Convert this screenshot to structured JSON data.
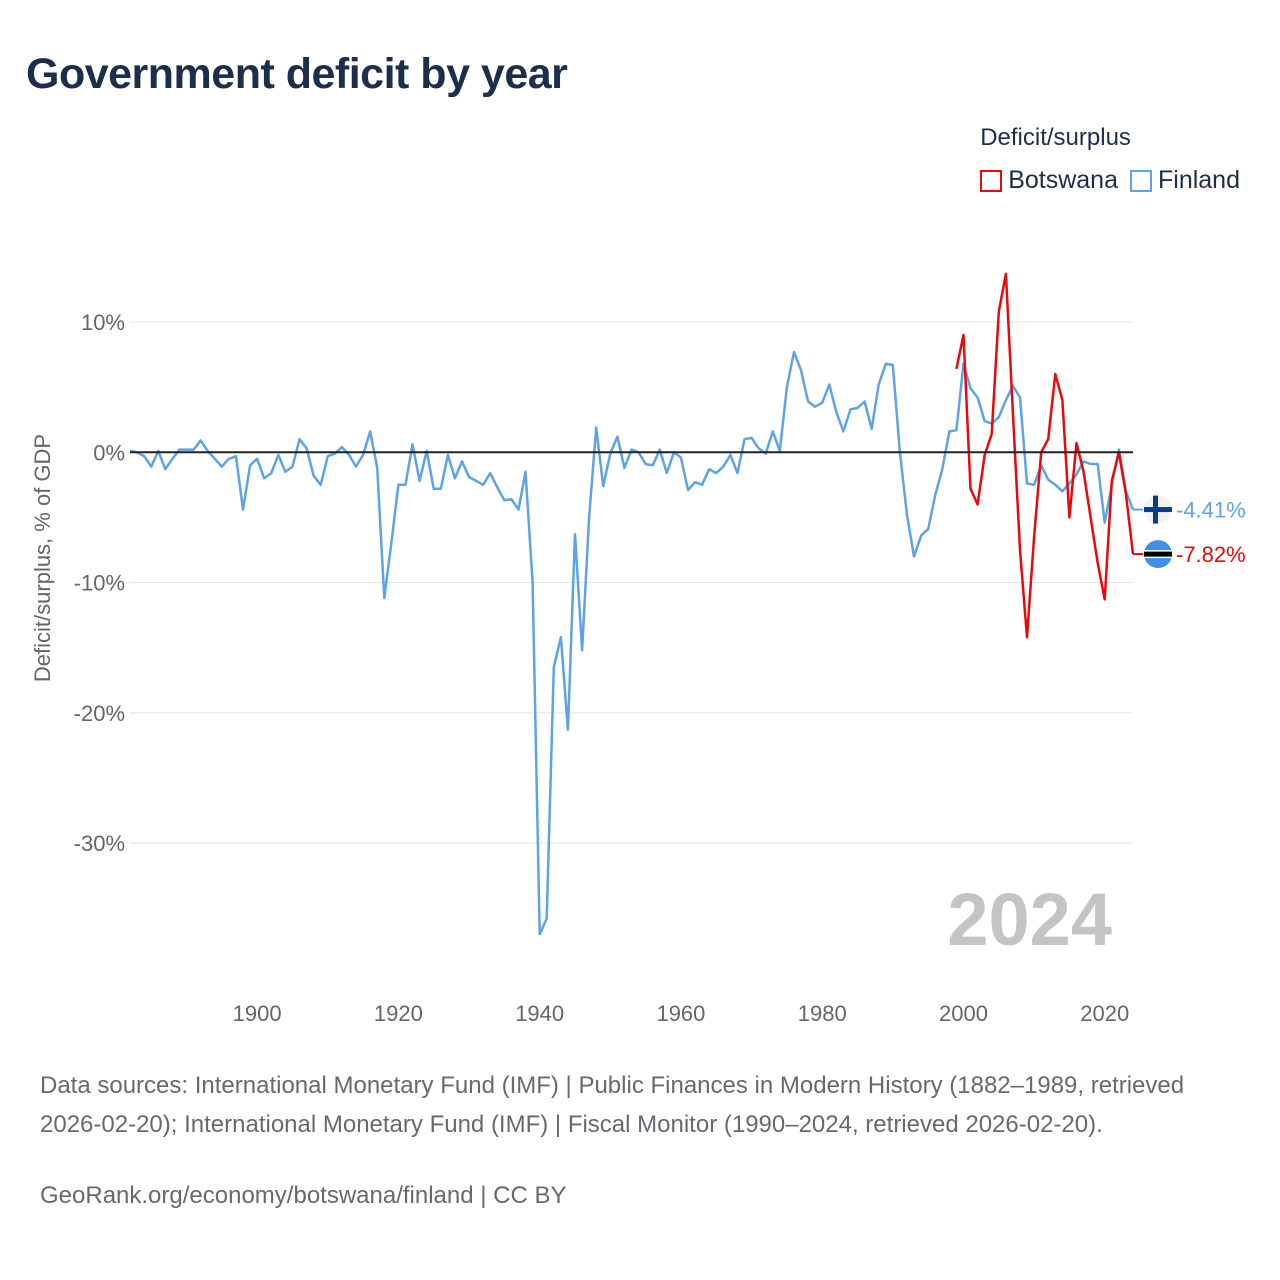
{
  "title": "Government deficit by year",
  "legend": {
    "title": "Deficit/surplus",
    "items": [
      {
        "label": "Botswana",
        "color": "#e8090a"
      },
      {
        "label": "Finland",
        "color": "#5ea3e6"
      }
    ]
  },
  "source": "Data sources: International Monetary Fund (IMF) | Public Finances in Modern History (1882–1989, retrieved 2026-02-20); International Monetary Fund (IMF) | Fiscal Monitor (1990–2024, retrieved 2026-02-20).",
  "credit": "GeoRank.org/economy/botswana/finland | CC BY",
  "chart_data": {
    "type": "line",
    "title": "Government deficit by year",
    "ylabel": "Deficit/surplus, % of GDP",
    "xlabel": "",
    "xlim": [
      1882,
      2024
    ],
    "ylim": [
      -38,
      14
    ],
    "x_ticks": [
      1900,
      1920,
      1940,
      1960,
      1980,
      2000,
      2020
    ],
    "x_tick_labels": [
      "1900",
      "1920",
      "1940",
      "1960",
      "1980",
      "2000",
      "2020"
    ],
    "y_ticks": [
      10,
      0,
      -10,
      -20,
      -30
    ],
    "y_tick_labels": [
      "10%",
      "0%",
      "-10%",
      "-20%",
      "-30%"
    ],
    "year_watermark": "2024",
    "series": [
      {
        "name": "Finland",
        "color": "#5ea3e6",
        "end_label": "-4.41%",
        "x": [
          1882,
          1883,
          1884,
          1885,
          1886,
          1887,
          1888,
          1889,
          1890,
          1891,
          1892,
          1893,
          1894,
          1895,
          1896,
          1897,
          1898,
          1899,
          1900,
          1901,
          1902,
          1903,
          1904,
          1905,
          1906,
          1907,
          1908,
          1909,
          1910,
          1911,
          1912,
          1913,
          1914,
          1915,
          1916,
          1917,
          1918,
          1919,
          1920,
          1921,
          1922,
          1923,
          1924,
          1925,
          1926,
          1927,
          1928,
          1929,
          1930,
          1931,
          1932,
          1933,
          1934,
          1935,
          1936,
          1937,
          1938,
          1939,
          1940,
          1941,
          1942,
          1943,
          1944,
          1945,
          1946,
          1947,
          1948,
          1949,
          1950,
          1951,
          1952,
          1953,
          1954,
          1955,
          1956,
          1957,
          1958,
          1959,
          1960,
          1961,
          1962,
          1963,
          1964,
          1965,
          1966,
          1967,
          1968,
          1969,
          1970,
          1971,
          1972,
          1973,
          1974,
          1975,
          1976,
          1977,
          1978,
          1979,
          1980,
          1981,
          1982,
          1983,
          1984,
          1985,
          1986,
          1987,
          1988,
          1989,
          1990,
          1991,
          1992,
          1993,
          1994,
          1995,
          1996,
          1997,
          1998,
          1999,
          2000,
          2001,
          2002,
          2003,
          2004,
          2005,
          2006,
          2007,
          2008,
          2009,
          2010,
          2011,
          2012,
          2013,
          2014,
          2015,
          2016,
          2017,
          2018,
          2019,
          2020,
          2021,
          2022,
          2023,
          2024
        ],
        "values": [
          0.1,
          0.0,
          -0.3,
          -1.1,
          0.1,
          -1.3,
          -0.5,
          0.2,
          0.2,
          0.2,
          0.9,
          0.1,
          -0.5,
          -1.1,
          -0.5,
          -0.3,
          -4.4,
          -1.0,
          -0.5,
          -2.0,
          -1.6,
          -0.2,
          -1.5,
          -1.1,
          1.0,
          0.3,
          -1.8,
          -2.5,
          -0.3,
          -0.1,
          0.4,
          -0.2,
          -1.1,
          -0.2,
          1.6,
          -1.2,
          -11.2,
          -7.0,
          -2.5,
          -2.5,
          0.6,
          -2.2,
          0.1,
          -2.8,
          -2.8,
          -0.2,
          -2.0,
          -0.7,
          -1.9,
          -2.2,
          -2.5,
          -1.6,
          -2.7,
          -3.7,
          -3.6,
          -4.4,
          -1.5,
          -10.0,
          -37.0,
          -35.8,
          -16.5,
          -14.2,
          -21.3,
          -6.3,
          -15.2,
          -5.0,
          1.9,
          -2.6,
          -0.1,
          1.2,
          -1.2,
          0.2,
          0.0,
          -0.9,
          -1.0,
          0.2,
          -1.6,
          0.0,
          -0.4,
          -2.9,
          -2.3,
          -2.5,
          -1.3,
          -1.6,
          -1.1,
          -0.2,
          -1.6,
          1.0,
          1.1,
          0.3,
          -0.1,
          1.6,
          0.1,
          5.0,
          7.7,
          6.3,
          3.9,
          3.5,
          3.8,
          5.2,
          3.1,
          1.6,
          3.3,
          3.4,
          3.9,
          1.8,
          5.2,
          6.8,
          6.7,
          0.0,
          -4.8,
          -8.0,
          -6.4,
          -5.9,
          -3.3,
          -1.3,
          1.6,
          1.7,
          6.8,
          4.9,
          4.2,
          2.4,
          2.2,
          2.7,
          4.0,
          5.1,
          4.2,
          -2.4,
          -2.5,
          -1.0,
          -2.1,
          -2.5,
          -3.0,
          -2.4,
          -1.7,
          -0.7,
          -0.9,
          -0.9,
          -5.4,
          -2.5,
          0.2,
          -3.0,
          -4.4
        ]
      },
      {
        "name": "Botswana",
        "color": "#e8090a",
        "end_label": "-7.82%",
        "x": [
          1999,
          2000,
          2001,
          2002,
          2003,
          2004,
          2005,
          2006,
          2007,
          2008,
          2009,
          2010,
          2011,
          2012,
          2013,
          2014,
          2015,
          2016,
          2017,
          2018,
          2019,
          2020,
          2021,
          2022,
          2023,
          2024
        ],
        "values": [
          6.4,
          9.0,
          -2.8,
          -4.0,
          -0.2,
          1.4,
          10.8,
          13.7,
          3.0,
          -7.5,
          -14.2,
          -6.5,
          0.0,
          1.0,
          6.0,
          4.0,
          -5.0,
          0.7,
          -1.5,
          -5.0,
          -8.5,
          -11.3,
          -2.2,
          0.0,
          -3.2,
          -7.82
        ]
      }
    ]
  }
}
